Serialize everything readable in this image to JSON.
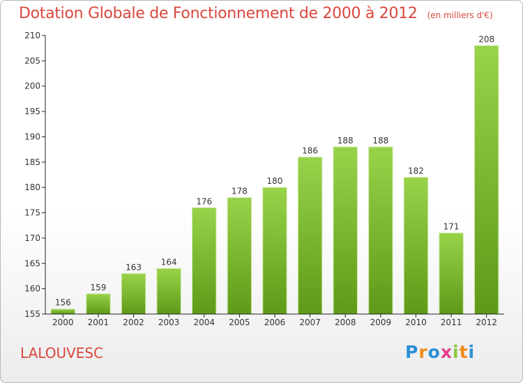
{
  "chart_data": {
    "type": "bar",
    "title": "Dotation Globale de Fonctionnement de 2000 à 2012",
    "subtitle": "(en milliers d'€)",
    "categories": [
      "2000",
      "2001",
      "2002",
      "2003",
      "2004",
      "2005",
      "2006",
      "2007",
      "2008",
      "2009",
      "2010",
      "2011",
      "2012"
    ],
    "values": [
      156,
      159,
      163,
      164,
      176,
      178,
      180,
      186,
      188,
      188,
      182,
      171,
      208
    ],
    "ylim": [
      155,
      210
    ],
    "yticks": [
      155,
      160,
      165,
      170,
      175,
      180,
      185,
      190,
      195,
      200,
      205,
      210
    ],
    "grid": false,
    "bar_color_top": "#98d34a",
    "bar_color_bottom": "#5e9a18"
  },
  "footer": {
    "city": "LALOUVESC",
    "logo": {
      "p": "P",
      "r": "r",
      "o": "o",
      "x": "x",
      "i1": "i",
      "t": "t",
      "i2": "i"
    }
  }
}
